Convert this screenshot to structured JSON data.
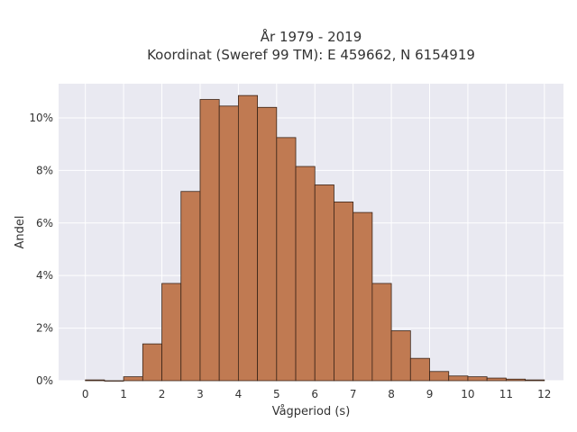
{
  "chart_data": {
    "type": "bar",
    "title": "År 1979 - 2019",
    "subtitle": "Koordinat (Sweref 99 TM): E 459662, N 6154919",
    "xlabel": "Vågperiod (s)",
    "ylabel": "Andel",
    "x_ticks": [
      0,
      1,
      2,
      3,
      4,
      5,
      6,
      7,
      8,
      9,
      10,
      11,
      12
    ],
    "y_ticks": [
      0,
      2,
      4,
      6,
      8,
      10
    ],
    "y_tick_labels": [
      "0%",
      "2%",
      "4%",
      "6%",
      "8%",
      "10%"
    ],
    "xlim": [
      -0.7,
      12.5
    ],
    "ylim": [
      0,
      11.3
    ],
    "bar_width": 0.5,
    "bins_start": [
      0,
      0.5,
      1,
      1.5,
      2,
      2.5,
      3,
      3.5,
      4,
      4.5,
      5,
      5.5,
      6,
      6.5,
      7,
      7.5,
      8,
      8.5,
      9,
      9.5,
      10,
      10.5,
      11,
      11.5
    ],
    "values": [
      0.03,
      0.0,
      0.15,
      1.4,
      3.7,
      7.2,
      10.7,
      10.45,
      10.85,
      10.4,
      9.25,
      8.15,
      7.45,
      6.8,
      6.4,
      3.7,
      1.9,
      0.85,
      0.35,
      0.18,
      0.15,
      0.1,
      0.06,
      0.03
    ],
    "grid": true,
    "colors": {
      "bar": "#c07a52",
      "bar_edge": "#3a2418",
      "plot_bg": "#e9e9f1",
      "grid": "#ffffff"
    }
  }
}
